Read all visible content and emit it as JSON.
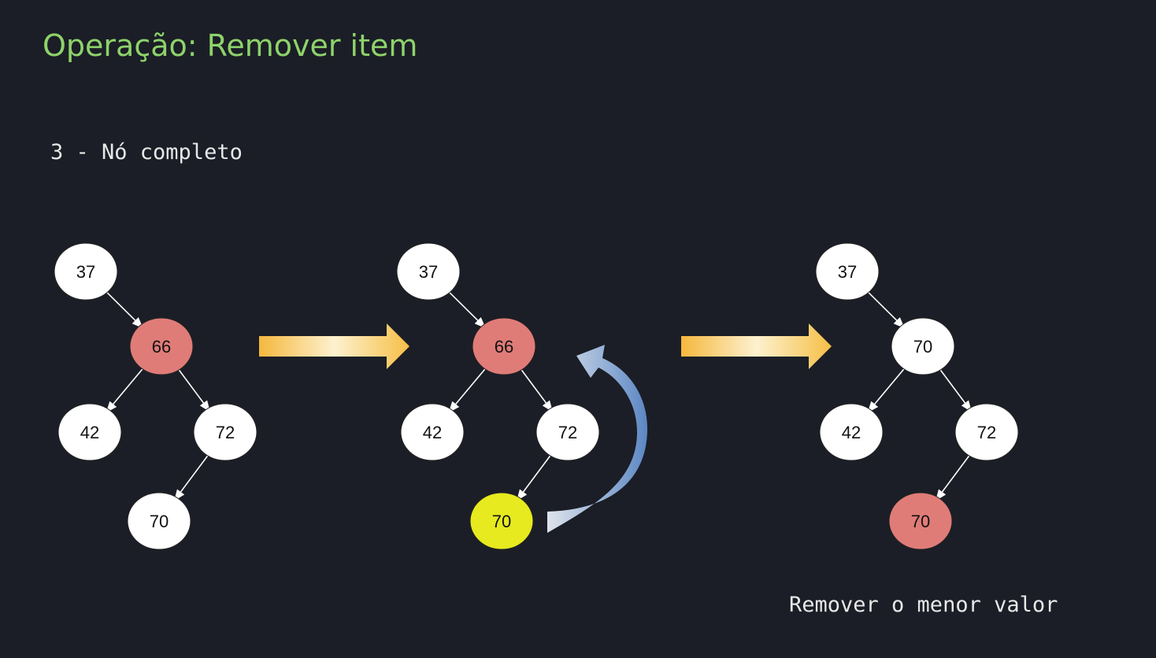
{
  "title": "Operação: Remover item",
  "subtitle": "3 - Nó completo",
  "caption": "Remover o menor valor",
  "colors": {
    "background": "#1b1e26",
    "title": "#8ed36b",
    "text": "#e8e8e8",
    "node_default": "#ffffff",
    "node_removed": "#e07c78",
    "node_successor": "#e6ea1e",
    "edge": "#ffffff",
    "transition_arrow": "#f7c54a",
    "curved_arrow": "#7fa6d4"
  },
  "trees": [
    {
      "nodes": [
        {
          "id": "n37",
          "label": "37",
          "state": "default"
        },
        {
          "id": "n66",
          "label": "66",
          "state": "removed"
        },
        {
          "id": "n42",
          "label": "42",
          "state": "default"
        },
        {
          "id": "n72",
          "label": "72",
          "state": "default"
        },
        {
          "id": "n70",
          "label": "70",
          "state": "default"
        }
      ],
      "edges": [
        [
          "n37",
          "n66"
        ],
        [
          "n66",
          "n42"
        ],
        [
          "n66",
          "n72"
        ],
        [
          "n72",
          "n70"
        ]
      ]
    },
    {
      "nodes": [
        {
          "id": "n37",
          "label": "37",
          "state": "default"
        },
        {
          "id": "n66",
          "label": "66",
          "state": "removed"
        },
        {
          "id": "n42",
          "label": "42",
          "state": "default"
        },
        {
          "id": "n72",
          "label": "72",
          "state": "default"
        },
        {
          "id": "n70",
          "label": "70",
          "state": "successor"
        }
      ],
      "edges": [
        [
          "n37",
          "n66"
        ],
        [
          "n66",
          "n42"
        ],
        [
          "n66",
          "n72"
        ],
        [
          "n72",
          "n70"
        ]
      ]
    },
    {
      "nodes": [
        {
          "id": "n37",
          "label": "37",
          "state": "default"
        },
        {
          "id": "n66",
          "label": "70",
          "state": "default"
        },
        {
          "id": "n42",
          "label": "42",
          "state": "default"
        },
        {
          "id": "n72",
          "label": "72",
          "state": "default"
        },
        {
          "id": "n70",
          "label": "70",
          "state": "removed"
        }
      ],
      "edges": [
        [
          "n37",
          "n66"
        ],
        [
          "n66",
          "n42"
        ],
        [
          "n66",
          "n72"
        ],
        [
          "n72",
          "n70"
        ]
      ]
    }
  ]
}
